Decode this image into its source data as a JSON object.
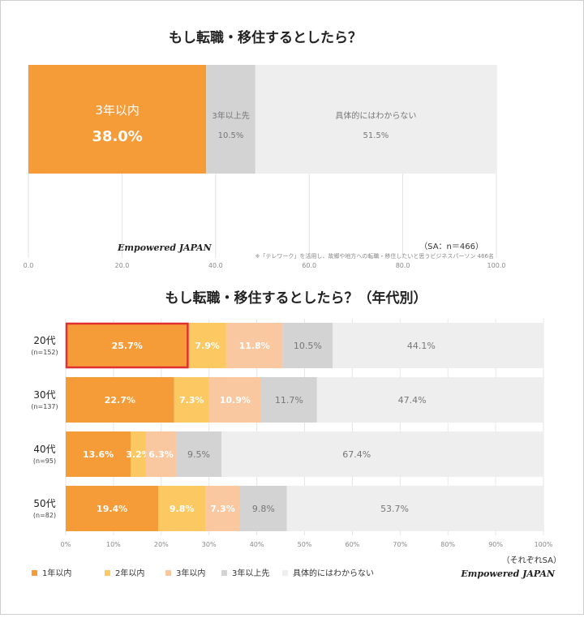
{
  "colors": {
    "c1": "#f59b37",
    "c2": "#fbc862",
    "c3": "#f9c7a0",
    "c4": "#d3d3d3",
    "c5": "#eeeeee",
    "highlight": "#e03030"
  },
  "chart_data": [
    {
      "type": "bar",
      "orientation": "horizontal-stacked",
      "title": "もし転職・移住するとしたら？",
      "categories": [
        "3年以内",
        "3年以上先",
        "具体的にはわからない"
      ],
      "values": [
        38.0,
        10.5,
        51.5
      ],
      "value_labels": [
        "38.0%",
        "10.5%",
        "51.5%"
      ],
      "xlim": [
        0,
        100
      ],
      "xticks": [
        "0.0",
        "20.0",
        "40.0",
        "60.0",
        "80.0",
        "100.0"
      ],
      "grid": true,
      "note": "※「テレワーク」を活用し、故郷や地方への転職・移住したいと思うビジネスパーソン 466名",
      "sample": "（SA：n＝466）",
      "logo": "Empowered JAPAN"
    },
    {
      "type": "bar",
      "orientation": "horizontal-stacked",
      "title": "もし転職・移住するとしたら？（年代別）",
      "series_names": [
        "1年以内",
        "2年以内",
        "3年以内",
        "3年以上先",
        "具体的にはわからない"
      ],
      "categories": [
        {
          "label": "20代",
          "n": "(n=152)"
        },
        {
          "label": "30代",
          "n": "(n=137)"
        },
        {
          "label": "40代",
          "n": "(n=95)"
        },
        {
          "label": "50代",
          "n": "(n=82)"
        }
      ],
      "rows": [
        [
          25.7,
          7.9,
          11.8,
          10.5,
          44.1
        ],
        [
          22.7,
          7.3,
          10.9,
          11.7,
          47.4
        ],
        [
          13.6,
          3.2,
          6.3,
          9.5,
          67.4
        ],
        [
          19.4,
          9.8,
          7.3,
          9.8,
          53.7
        ]
      ],
      "row_labels": [
        [
          "25.7%",
          "7.9%",
          "11.8%",
          "10.5%",
          "44.1%"
        ],
        [
          "22.7%",
          "7.3%",
          "10.9%",
          "11.7%",
          "47.4%"
        ],
        [
          "13.6%",
          "3.2%",
          "6.3%",
          "9.5%",
          "67.4%"
        ],
        [
          "19.4%",
          "9.8%",
          "7.3%",
          "9.8%",
          "53.7%"
        ]
      ],
      "highlighted": "20代 1年以内",
      "xlim": [
        0,
        100
      ],
      "xticks": [
        "0%",
        "10%",
        "20%",
        "30%",
        "40%",
        "50%",
        "60%",
        "70%",
        "80%",
        "90%",
        "100%"
      ],
      "grid": true,
      "legend": "bottom",
      "sample": "（それぞれSA）",
      "logo": "Empowered JAPAN"
    }
  ]
}
